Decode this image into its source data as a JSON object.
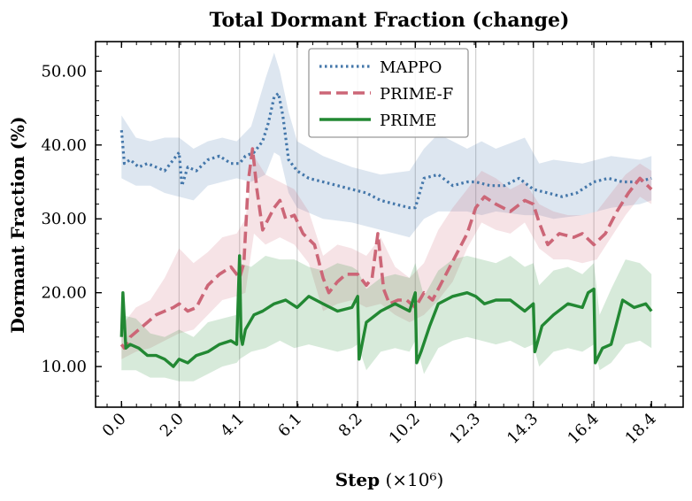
{
  "chart_data": {
    "type": "line",
    "title": "Total Dormant Fraction (change)",
    "xlabel_bold": "Step",
    "xlabel_rest": " (×10⁶)",
    "ylabel": "Dormant Fraction (%)",
    "xlim": [
      -0.9,
      19.5
    ],
    "ylim": [
      4.5,
      54.0
    ],
    "xticks": [
      0.0,
      2.0,
      4.1,
      6.1,
      8.2,
      10.2,
      12.3,
      14.3,
      16.4,
      18.4
    ],
    "xtick_labels": [
      "0.0",
      "2.0",
      "4.1",
      "6.1",
      "8.2",
      "10.2",
      "12.3",
      "14.3",
      "16.4",
      "18.4"
    ],
    "yticks": [
      10,
      20,
      30,
      40,
      50
    ],
    "ytick_labels": [
      "10.00",
      "20.00",
      "30.00",
      "40.00",
      "50.00"
    ],
    "vertical_gridlines": [
      2.0,
      4.1,
      6.1,
      8.2,
      10.2,
      12.3,
      14.3,
      16.4
    ],
    "legend_position": "top-center",
    "series": [
      {
        "name": "MAPPO",
        "color": "#4477aa",
        "style": "dotted",
        "x": [
          0.0,
          0.1,
          0.3,
          0.6,
          0.9,
          1.2,
          1.5,
          1.8,
          2.0,
          2.1,
          2.3,
          2.6,
          3.0,
          3.4,
          3.8,
          4.1,
          4.3,
          4.6,
          4.9,
          5.1,
          5.3,
          5.45,
          5.6,
          5.8,
          6.1,
          6.5,
          7.0,
          7.5,
          8.0,
          8.5,
          9.0,
          9.5,
          10.0,
          10.2,
          10.5,
          11.0,
          11.5,
          12.0,
          12.3,
          12.8,
          13.3,
          13.8,
          14.3,
          14.8,
          15.3,
          15.8,
          16.4,
          16.9,
          17.4,
          17.9,
          18.4
        ],
        "y": [
          42.0,
          37.5,
          38.0,
          37.0,
          37.5,
          37.0,
          36.5,
          38.0,
          39.0,
          34.5,
          37.0,
          36.5,
          38.0,
          38.5,
          37.5,
          37.5,
          38.5,
          39.0,
          40.5,
          43.0,
          46.5,
          47.0,
          44.0,
          38.0,
          36.5,
          35.5,
          35.0,
          34.5,
          34.0,
          33.5,
          32.5,
          32.0,
          31.5,
          31.5,
          35.5,
          36.0,
          34.5,
          35.0,
          35.0,
          34.5,
          34.5,
          35.5,
          34.0,
          33.5,
          33.0,
          33.5,
          35.0,
          35.5,
          35.0,
          35.0,
          35.5
        ]
      },
      {
        "name": "PRIME-F",
        "color": "#cc6677",
        "style": "dashed",
        "x": [
          0.0,
          0.1,
          0.3,
          0.6,
          0.9,
          1.2,
          1.5,
          1.8,
          2.0,
          2.3,
          2.6,
          3.0,
          3.4,
          3.8,
          4.1,
          4.25,
          4.4,
          4.55,
          4.7,
          4.9,
          5.1,
          5.3,
          5.5,
          5.7,
          6.0,
          6.3,
          6.7,
          7.0,
          7.2,
          7.5,
          7.8,
          8.2,
          8.5,
          8.7,
          8.9,
          9.1,
          9.3,
          9.6,
          9.9,
          10.2,
          10.5,
          10.8,
          11.2,
          11.6,
          12.0,
          12.3,
          12.6,
          13.0,
          13.5,
          14.0,
          14.3,
          14.5,
          14.8,
          15.2,
          15.7,
          16.0,
          16.4,
          16.8,
          17.2,
          17.6,
          18.0,
          18.4
        ],
        "y": [
          13.0,
          12.5,
          14.0,
          15.0,
          16.0,
          17.0,
          17.5,
          18.0,
          18.5,
          17.5,
          18.0,
          21.0,
          22.5,
          23.5,
          22.0,
          24.0,
          35.0,
          39.5,
          34.0,
          28.5,
          30.0,
          31.5,
          32.5,
          30.0,
          30.5,
          28.0,
          26.5,
          22.0,
          20.0,
          21.5,
          22.5,
          22.5,
          21.0,
          22.0,
          28.0,
          20.5,
          18.5,
          19.0,
          19.0,
          18.0,
          20.0,
          19.0,
          22.0,
          25.0,
          28.0,
          31.5,
          33.0,
          32.0,
          31.0,
          32.5,
          32.0,
          29.5,
          26.5,
          28.0,
          27.5,
          28.0,
          26.5,
          28.0,
          31.0,
          33.5,
          35.5,
          34.0
        ]
      },
      {
        "name": "PRIME",
        "color": "#228833",
        "style": "solid",
        "x": [
          0.0,
          0.05,
          0.15,
          0.3,
          0.6,
          0.9,
          1.2,
          1.5,
          1.8,
          2.0,
          2.3,
          2.6,
          3.0,
          3.4,
          3.8,
          4.0,
          4.1,
          4.15,
          4.2,
          4.3,
          4.6,
          4.9,
          5.3,
          5.7,
          6.1,
          6.5,
          7.0,
          7.5,
          8.0,
          8.2,
          8.25,
          8.5,
          9.0,
          9.5,
          10.0,
          10.2,
          10.25,
          10.4,
          10.7,
          11.0,
          11.5,
          12.0,
          12.3,
          12.6,
          13.0,
          13.5,
          14.0,
          14.3,
          14.35,
          14.6,
          15.0,
          15.5,
          16.0,
          16.2,
          16.4,
          16.45,
          16.7,
          17.0,
          17.4,
          17.8,
          18.2,
          18.4
        ],
        "y": [
          14.0,
          20.0,
          12.5,
          13.0,
          12.5,
          11.5,
          11.5,
          11.0,
          10.0,
          11.0,
          10.5,
          11.5,
          12.0,
          13.0,
          13.5,
          13.0,
          25.0,
          14.0,
          13.0,
          15.0,
          17.0,
          17.5,
          18.5,
          19.0,
          18.0,
          19.5,
          18.5,
          17.5,
          18.0,
          19.5,
          11.0,
          16.0,
          17.5,
          18.5,
          17.5,
          20.0,
          10.5,
          12.0,
          15.5,
          18.5,
          19.5,
          20.0,
          19.5,
          18.5,
          19.0,
          19.0,
          17.5,
          18.5,
          12.0,
          15.5,
          17.0,
          18.5,
          18.0,
          20.0,
          20.5,
          10.5,
          12.5,
          13.0,
          19.0,
          18.0,
          18.5,
          17.5
        ]
      }
    ],
    "bands": [
      {
        "series": "MAPPO",
        "color": "#4477aa",
        "x": [
          0.0,
          0.5,
          1.0,
          1.5,
          2.0,
          2.5,
          3.0,
          3.5,
          4.0,
          4.5,
          5.0,
          5.3,
          5.5,
          5.8,
          6.1,
          7.0,
          8.0,
          9.0,
          10.0,
          10.5,
          11.0,
          12.0,
          12.5,
          13.0,
          14.0,
          14.5,
          15.0,
          16.0,
          17.0,
          18.0,
          18.4
        ],
        "upper": [
          44.0,
          41.0,
          40.5,
          41.0,
          41.0,
          39.5,
          40.5,
          41.0,
          40.5,
          42.5,
          49.0,
          52.5,
          50.0,
          44.5,
          40.5,
          38.5,
          37.0,
          36.0,
          36.5,
          39.5,
          41.5,
          39.5,
          40.5,
          39.5,
          41.0,
          37.5,
          38.0,
          37.5,
          38.5,
          38.0,
          38.5
        ],
        "lower": [
          35.5,
          34.5,
          34.5,
          33.5,
          33.0,
          32.5,
          34.5,
          35.0,
          35.5,
          35.0,
          36.0,
          39.0,
          38.5,
          33.5,
          31.5,
          30.0,
          29.5,
          28.5,
          27.5,
          30.0,
          31.0,
          31.0,
          30.5,
          31.0,
          30.5,
          30.5,
          30.0,
          30.5,
          31.5,
          32.0,
          32.5
        ]
      },
      {
        "series": "PRIME-F",
        "color": "#cc6677",
        "x": [
          0.0,
          0.5,
          1.0,
          1.5,
          2.0,
          2.5,
          3.0,
          3.5,
          4.0,
          4.3,
          4.6,
          5.0,
          5.5,
          6.0,
          6.5,
          7.0,
          7.5,
          8.0,
          8.5,
          9.0,
          9.5,
          10.0,
          10.5,
          11.0,
          11.5,
          12.0,
          12.5,
          13.0,
          13.5,
          14.0,
          14.5,
          15.0,
          15.5,
          16.0,
          16.5,
          17.0,
          17.5,
          18.0,
          18.4
        ],
        "upper": [
          15.5,
          18.0,
          19.0,
          22.0,
          26.0,
          24.0,
          25.5,
          27.5,
          28.0,
          30.0,
          38.5,
          36.0,
          35.0,
          34.0,
          31.0,
          25.0,
          26.5,
          26.0,
          25.0,
          27.5,
          23.5,
          22.0,
          24.0,
          28.5,
          31.5,
          34.0,
          36.5,
          35.5,
          34.0,
          35.0,
          32.0,
          31.0,
          30.5,
          30.5,
          31.0,
          33.5,
          36.0,
          37.5,
          36.5
        ],
        "lower": [
          11.0,
          12.0,
          12.5,
          13.5,
          14.5,
          15.0,
          17.0,
          19.0,
          19.5,
          20.0,
          28.0,
          26.5,
          27.5,
          26.5,
          24.0,
          17.5,
          18.5,
          19.0,
          18.0,
          18.5,
          17.0,
          16.0,
          17.0,
          19.0,
          21.5,
          26.0,
          29.5,
          28.5,
          28.0,
          29.5,
          26.0,
          24.5,
          24.5,
          24.0,
          24.5,
          27.5,
          30.5,
          33.0,
          32.0
        ]
      },
      {
        "series": "PRIME",
        "color": "#228833",
        "x": [
          0.0,
          0.5,
          1.0,
          1.5,
          2.0,
          2.5,
          3.0,
          3.5,
          4.0,
          4.1,
          4.5,
          5.0,
          5.5,
          6.0,
          6.5,
          7.0,
          7.5,
          8.0,
          8.2,
          8.5,
          9.0,
          9.5,
          10.0,
          10.2,
          10.5,
          11.0,
          11.5,
          12.0,
          12.5,
          13.0,
          13.5,
          14.0,
          14.3,
          14.5,
          15.0,
          15.5,
          16.0,
          16.4,
          16.6,
          17.0,
          17.5,
          18.0,
          18.4
        ],
        "upper": [
          17.0,
          16.5,
          14.5,
          14.0,
          15.0,
          14.0,
          16.0,
          16.5,
          17.0,
          24.0,
          23.5,
          25.0,
          24.5,
          24.5,
          23.5,
          23.0,
          24.0,
          23.5,
          23.0,
          20.5,
          22.0,
          22.5,
          22.0,
          24.0,
          19.5,
          23.0,
          24.5,
          25.0,
          24.5,
          24.0,
          25.0,
          23.5,
          24.0,
          21.0,
          23.0,
          23.5,
          22.5,
          24.0,
          17.0,
          20.5,
          24.5,
          24.0,
          22.5
        ],
        "lower": [
          9.5,
          9.5,
          8.5,
          8.5,
          8.0,
          8.0,
          9.0,
          10.0,
          10.5,
          11.0,
          12.0,
          12.5,
          13.5,
          12.5,
          13.0,
          12.5,
          12.0,
          12.5,
          13.0,
          9.5,
          12.0,
          12.5,
          12.0,
          13.5,
          9.0,
          12.5,
          13.5,
          14.0,
          13.5,
          13.0,
          13.5,
          12.5,
          13.0,
          10.0,
          12.0,
          12.5,
          12.0,
          13.0,
          9.5,
          10.5,
          13.0,
          13.5,
          12.5
        ]
      }
    ]
  }
}
